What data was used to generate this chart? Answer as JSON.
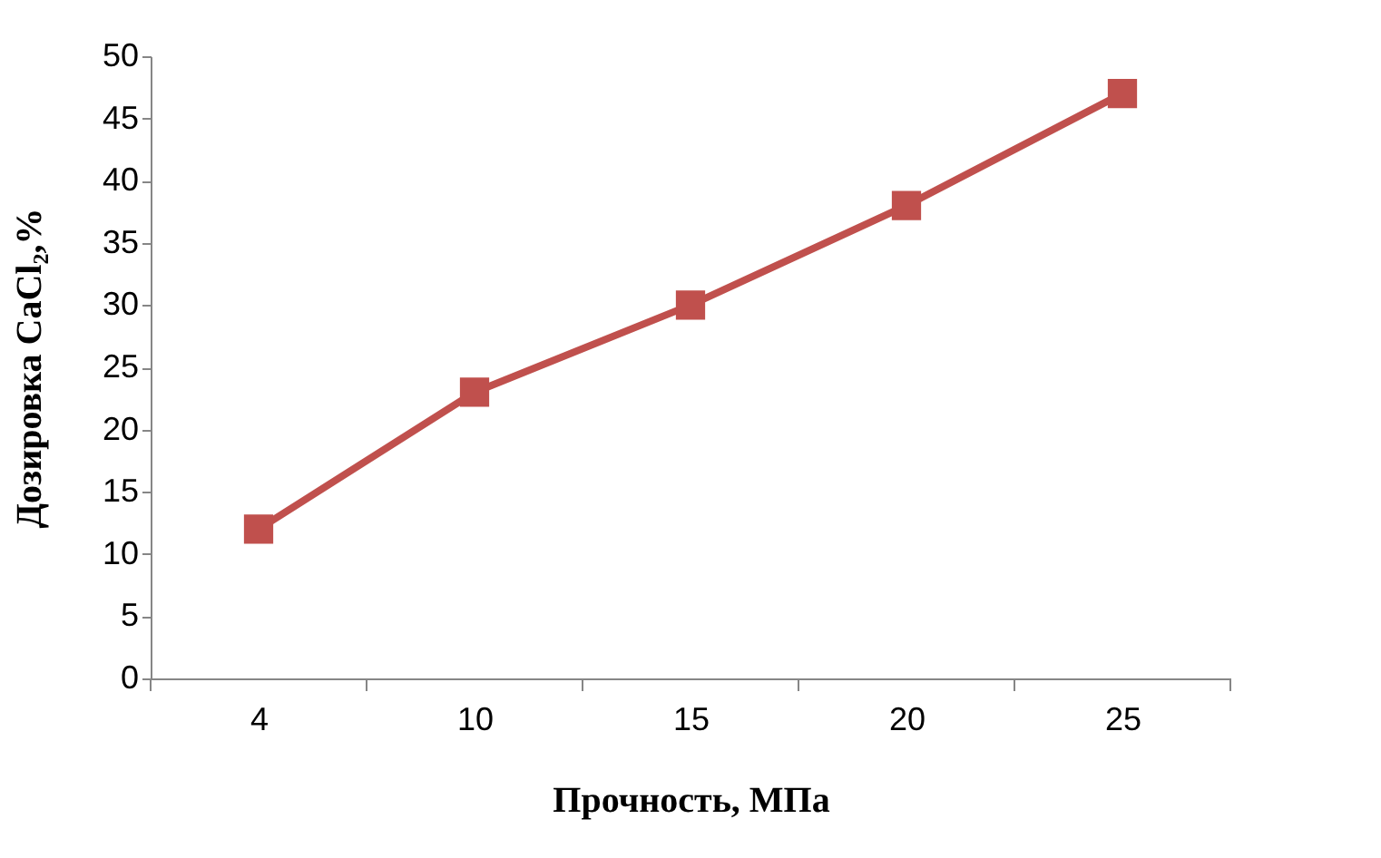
{
  "chart_data": {
    "type": "line",
    "xlabel": "Прочность, МПа",
    "ylabel": "Дозировка CaCl₂,%",
    "categories": [
      "4",
      "10",
      "15",
      "20",
      "25"
    ],
    "series": [
      {
        "color": "#c0504d",
        "values": [
          12,
          23,
          30,
          38,
          47
        ]
      }
    ],
    "ylim": [
      0,
      50
    ],
    "yticks": [
      0,
      5,
      10,
      15,
      20,
      25,
      30,
      35,
      40,
      45,
      50
    ],
    "grid": false,
    "legend": false,
    "marker": "square",
    "line_style": "solid"
  }
}
